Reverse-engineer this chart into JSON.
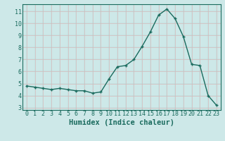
{
  "x": [
    0,
    1,
    2,
    3,
    4,
    5,
    6,
    7,
    8,
    9,
    10,
    11,
    12,
    13,
    14,
    15,
    16,
    17,
    18,
    19,
    20,
    21,
    22,
    23
  ],
  "y": [
    4.8,
    4.7,
    4.6,
    4.5,
    4.6,
    4.5,
    4.4,
    4.4,
    4.2,
    4.3,
    5.4,
    6.4,
    6.5,
    7.0,
    8.1,
    9.3,
    10.7,
    11.2,
    10.4,
    8.9,
    6.6,
    6.5,
    4.0,
    3.2
  ],
  "line_color": "#1a6b5e",
  "marker": "+",
  "marker_size": 3.5,
  "marker_lw": 1.0,
  "bg_color": "#cde8e8",
  "grid_color_teal": "#a8cccc",
  "grid_color_pink": "#e8b8b8",
  "xlabel": "Humidex (Indice chaleur)",
  "xlim": [
    -0.5,
    23.5
  ],
  "ylim": [
    2.8,
    11.6
  ],
  "yticks": [
    3,
    4,
    5,
    6,
    7,
    8,
    9,
    10,
    11
  ],
  "xticks": [
    0,
    1,
    2,
    3,
    4,
    5,
    6,
    7,
    8,
    9,
    10,
    11,
    12,
    13,
    14,
    15,
    16,
    17,
    18,
    19,
    20,
    21,
    22,
    23
  ],
  "tick_fontsize": 6.0,
  "xlabel_fontsize": 7.5,
  "label_color": "#1a6b5e",
  "line_width": 1.0
}
